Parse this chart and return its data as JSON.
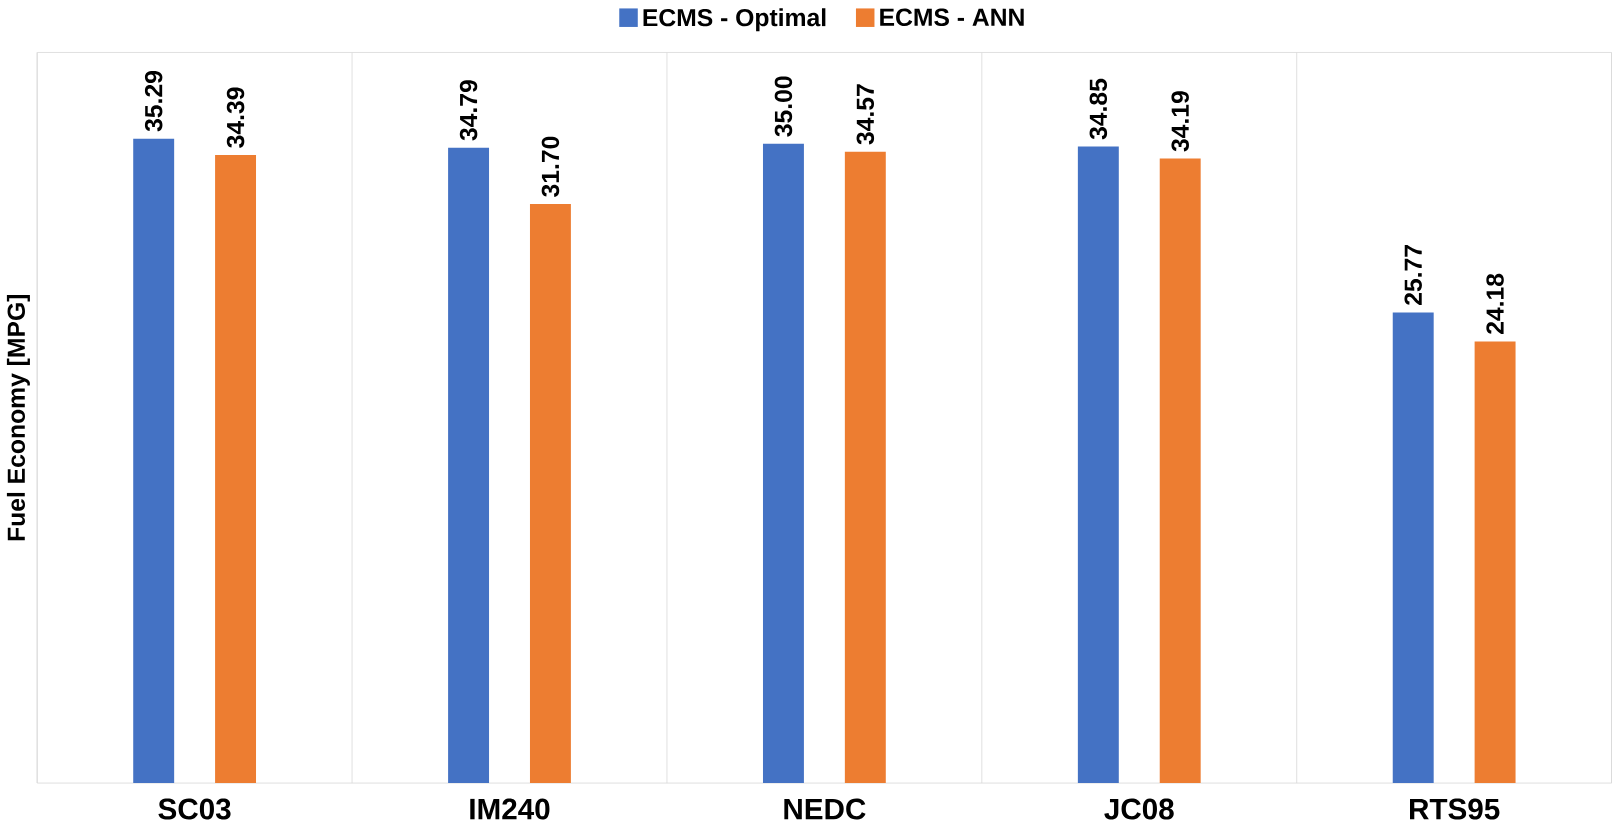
{
  "chart_data": {
    "type": "bar",
    "ylabel": "Fuel Economy [MPG]",
    "categories": [
      "SC03",
      "IM240",
      "NEDC",
      "JC08",
      "RTS95"
    ],
    "series": [
      {
        "name": "ECMS - Optimal",
        "color": "#4472c4",
        "values": [
          35.29,
          34.79,
          35.0,
          34.85,
          25.77
        ],
        "value_labels": [
          "35.29",
          "34.79",
          "35.00",
          "34.85",
          "25.77"
        ]
      },
      {
        "name": "ECMS - ANN",
        "color": "#ed7d31",
        "values": [
          34.39,
          31.7,
          34.57,
          34.19,
          24.18
        ],
        "value_labels": [
          "34.39",
          "31.70",
          "34.57",
          "34.19",
          "24.18"
        ]
      }
    ],
    "ylim": [
      0,
      40
    ],
    "tick_labels": "x",
    "grid": "x",
    "legend": "top"
  }
}
